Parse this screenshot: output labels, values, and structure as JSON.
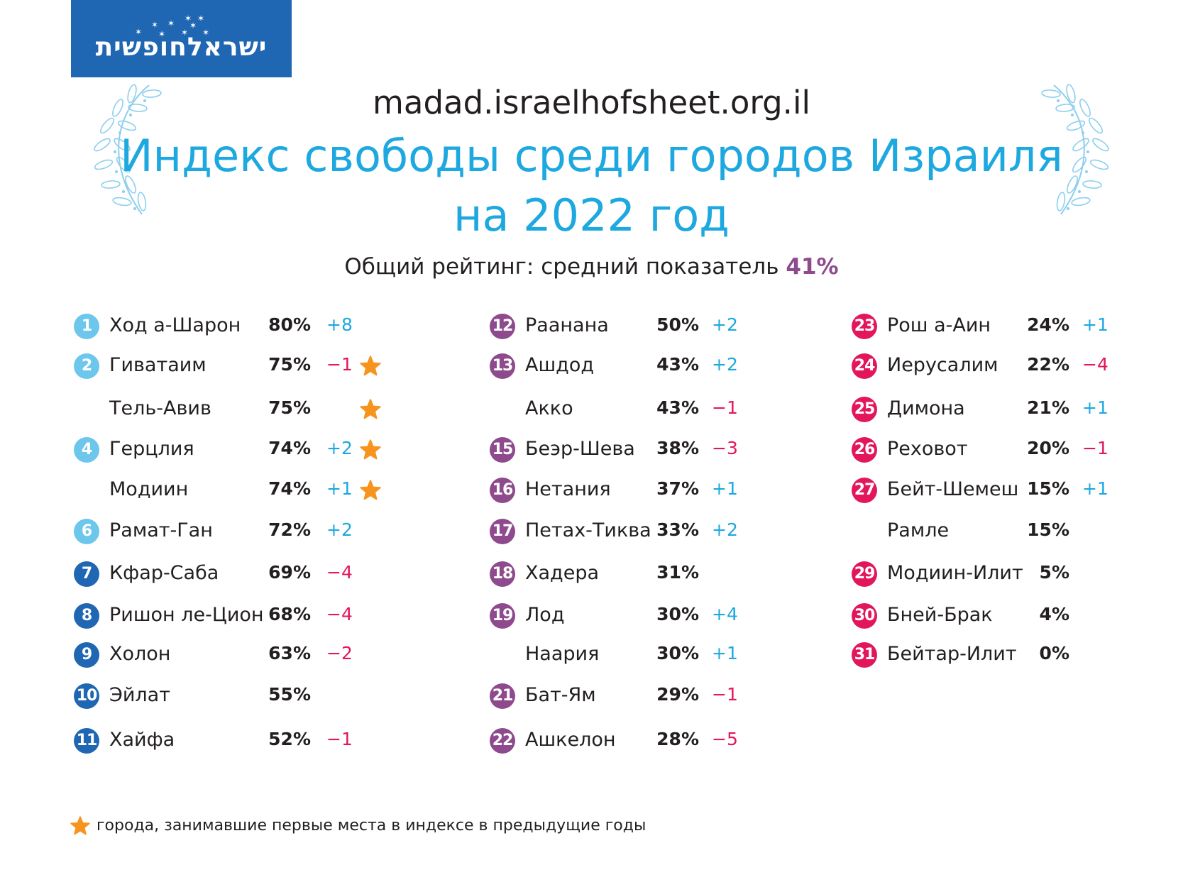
{
  "logo": {
    "text": "ישראלחופשית"
  },
  "header": {
    "site": "madad.israelhofsheet.org.il",
    "title_line1": "Индекс свободы среди городов Израиля",
    "title_line2": "на 2022 год",
    "subtitle_text": "Общий рейтинг: средний показатель ",
    "subtitle_value": "41%"
  },
  "colors": {
    "title": "#1ea8e0",
    "accent": "#8e4a8c",
    "positive": "#1ea8e0",
    "negative": "#e3165b",
    "star": "#f7941d",
    "rank_tier_1": "#6dc6ec",
    "rank_tier_2": "#1f66b3",
    "rank_tier_3": "#8e4a8c",
    "rank_tier_4": "#e3165b"
  },
  "chart_data": {
    "type": "table",
    "columns": [
      "rank",
      "city",
      "score",
      "change",
      "star"
    ],
    "rows": [
      {
        "rank": "1",
        "city": "Ход а-Шарон",
        "score": "80%",
        "change": "+8",
        "star": false
      },
      {
        "rank": "2",
        "city": "Гиватаим",
        "score": "75%",
        "change": "-1",
        "star": true
      },
      {
        "rank": "",
        "city": "Тель-Авив",
        "score": "75%",
        "change": "",
        "star": true
      },
      {
        "rank": "4",
        "city": "Герцлия",
        "score": "74%",
        "change": "+2",
        "star": true
      },
      {
        "rank": "",
        "city": "Модиин",
        "score": "74%",
        "change": "+1",
        "star": true
      },
      {
        "rank": "6",
        "city": "Рамат-Ган",
        "score": "72%",
        "change": "+2",
        "star": false
      },
      {
        "rank": "7",
        "city": "Кфар-Саба",
        "score": "69%",
        "change": "-4",
        "star": false
      },
      {
        "rank": "8",
        "city": "Ришон ле-Цион",
        "score": "68%",
        "change": "-4",
        "star": false
      },
      {
        "rank": "9",
        "city": "Холон",
        "score": "63%",
        "change": "-2",
        "star": false
      },
      {
        "rank": "10",
        "city": "Эйлат",
        "score": "55%",
        "change": "",
        "star": false
      },
      {
        "rank": "11",
        "city": "Хайфа",
        "score": "52%",
        "change": "-1",
        "star": false
      },
      {
        "rank": "12",
        "city": "Раанана",
        "score": "50%",
        "change": "+2",
        "star": false
      },
      {
        "rank": "13",
        "city": "Ашдод",
        "score": "43%",
        "change": "+2",
        "star": false
      },
      {
        "rank": "",
        "city": "Акко",
        "score": "43%",
        "change": "-1",
        "star": false
      },
      {
        "rank": "15",
        "city": "Беэр-Шева",
        "score": "38%",
        "change": "-3",
        "star": false
      },
      {
        "rank": "16",
        "city": "Нетания",
        "score": "37%",
        "change": "+1",
        "star": false
      },
      {
        "rank": "17",
        "city": "Петах-Тиква",
        "score": "33%",
        "change": "+2",
        "star": false
      },
      {
        "rank": "18",
        "city": "Хадера",
        "score": "31%",
        "change": "",
        "star": false
      },
      {
        "rank": "19",
        "city": "Лод",
        "score": "30%",
        "change": "+4",
        "star": false
      },
      {
        "rank": "",
        "city": "Наария",
        "score": "30%",
        "change": "+1",
        "star": false
      },
      {
        "rank": "21",
        "city": "Бат-Ям",
        "score": "29%",
        "change": "-1",
        "star": false
      },
      {
        "rank": "22",
        "city": "Ашкелон",
        "score": "28%",
        "change": "-5",
        "star": false
      },
      {
        "rank": "23",
        "city": "Рош а-Аин",
        "score": "24%",
        "change": "+1",
        "star": false
      },
      {
        "rank": "24",
        "city": "Иерусалим",
        "score": "22%",
        "change": "-4",
        "star": false
      },
      {
        "rank": "25",
        "city": "Димона",
        "score": "21%",
        "change": "+1",
        "star": false
      },
      {
        "rank": "26",
        "city": "Реховот",
        "score": "20%",
        "change": "-1",
        "star": false
      },
      {
        "rank": "27",
        "city": "Бейт-Шемеш",
        "score": "15%",
        "change": "+1",
        "star": false
      },
      {
        "rank": "",
        "city": "Рамле",
        "score": "15%",
        "change": "",
        "star": false
      },
      {
        "rank": "29",
        "city": "Модиин-Илит",
        "score": "5%",
        "change": "",
        "star": false
      },
      {
        "rank": "30",
        "city": "Бней-Брак",
        "score": "4%",
        "change": "",
        "star": false
      },
      {
        "rank": "31",
        "city": "Бейтар-Илит",
        "score": "0%",
        "change": "",
        "star": false
      }
    ]
  },
  "footnote": {
    "text": "города, занимавшие первые места в индексе в предыдущие годы"
  }
}
